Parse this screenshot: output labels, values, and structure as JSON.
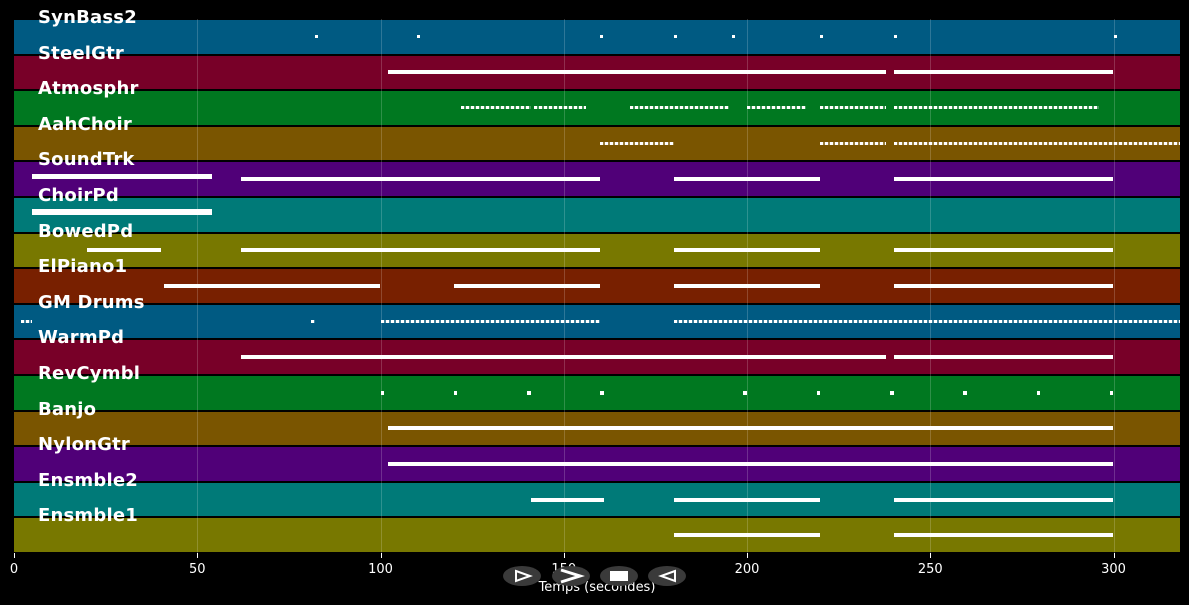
{
  "tracks": [
    {
      "name": "SynBass2",
      "color": "#005a82",
      "notes": [
        [
          82,
          1
        ],
        [
          110,
          1
        ],
        [
          160,
          1
        ],
        [
          180,
          1
        ],
        [
          196,
          1
        ],
        [
          220,
          1
        ],
        [
          240,
          1
        ],
        [
          300,
          1
        ]
      ],
      "dense": true
    },
    {
      "name": "SteelGtr",
      "color": "#780028",
      "notes": [
        [
          102,
          180
        ],
        [
          180,
          238
        ],
        [
          240,
          300
        ]
      ]
    },
    {
      "name": "Atmosphr",
      "color": "#007820",
      "notes": [
        [
          122,
          141
        ],
        [
          142,
          156
        ],
        [
          168,
          195
        ],
        [
          200,
          216
        ],
        [
          220,
          238
        ],
        [
          240,
          296
        ]
      ],
      "dense": true
    },
    {
      "name": "AahChoir",
      "color": "#7a5500",
      "notes": [
        [
          160,
          180
        ],
        [
          220,
          238
        ],
        [
          240,
          320
        ]
      ],
      "dense": true
    },
    {
      "name": "SoundTrk",
      "color": "#500078",
      "notes": [
        [
          5,
          54
        ],
        [
          62,
          160
        ],
        [
          180,
          220
        ],
        [
          240,
          300
        ]
      ]
    },
    {
      "name": "ChoirPd",
      "color": "#007a78",
      "notes": [
        [
          5,
          54
        ]
      ]
    },
    {
      "name": "BowedPd",
      "color": "#787800",
      "notes": [
        [
          20,
          40
        ],
        [
          62,
          160
        ],
        [
          180,
          220
        ],
        [
          240,
          300
        ]
      ]
    },
    {
      "name": "ElPiano1",
      "color": "#782000",
      "notes": [
        [
          41,
          100
        ],
        [
          120,
          160
        ],
        [
          180,
          220
        ],
        [
          240,
          300
        ]
      ]
    },
    {
      "name": "GM Drums",
      "color": "#005a82",
      "notes": [
        [
          2,
          5
        ],
        [
          81,
          82
        ],
        [
          100,
          160
        ],
        [
          180,
          300
        ],
        [
          300,
          320
        ]
      ],
      "dense": true
    },
    {
      "name": "WarmPd",
      "color": "#780028",
      "notes": [
        [
          62,
          180
        ],
        [
          180,
          238
        ],
        [
          240,
          300
        ]
      ]
    },
    {
      "name": "RevCymbl",
      "color": "#007820",
      "notes": [
        [
          100,
          101
        ],
        [
          120,
          121
        ],
        [
          140,
          141
        ],
        [
          160,
          161
        ],
        [
          199,
          200
        ],
        [
          219,
          220
        ],
        [
          239,
          240
        ],
        [
          259,
          260
        ],
        [
          279,
          280
        ],
        [
          299,
          300
        ]
      ]
    },
    {
      "name": "Banjo",
      "color": "#7a5500",
      "notes": [
        [
          102,
          300
        ]
      ]
    },
    {
      "name": "NylonGtr",
      "color": "#500078",
      "notes": [
        [
          102,
          300
        ]
      ]
    },
    {
      "name": "Ensmble2",
      "color": "#007a78",
      "notes": [
        [
          141,
          161
        ],
        [
          180,
          220
        ],
        [
          240,
          300
        ]
      ]
    },
    {
      "name": "Ensmble1",
      "color": "#787800",
      "notes": [
        [
          180,
          220
        ],
        [
          240,
          300
        ]
      ]
    }
  ],
  "axis": {
    "xlabel": "Temps (secondes)",
    "ticks": [
      0,
      50,
      100,
      150,
      200,
      250,
      300
    ],
    "tick_labels": [
      "0",
      "50",
      "100",
      "150",
      "200",
      "250",
      "300"
    ],
    "xlim": [
      0,
      318
    ]
  },
  "controls": {
    "play_icon": "play-outline-icon",
    "next_icon": "chevron-right-icon",
    "stop_icon": "stop-icon",
    "prev_icon": "play-reverse-outline-icon"
  }
}
